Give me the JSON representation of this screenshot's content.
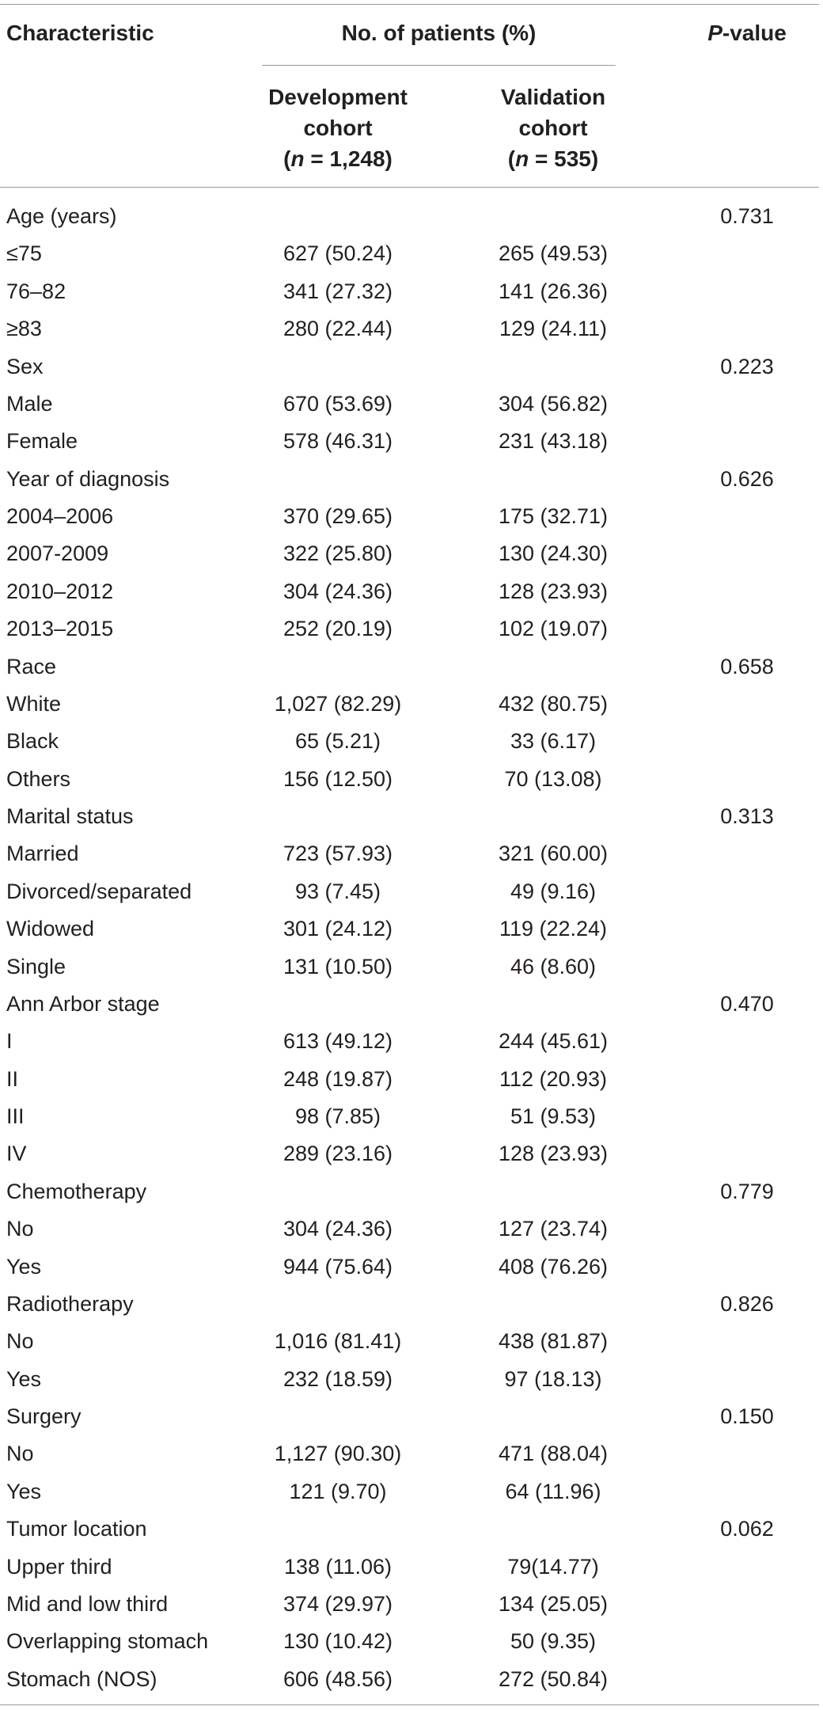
{
  "header": {
    "characteristic": "Characteristic",
    "group": "No. of patients (%)",
    "pvalue_italic": "P",
    "pvalue_rest": "-value",
    "dev": {
      "line1": "Development",
      "line2": "cohort",
      "n_open": "(",
      "n_var": "n",
      "n_rest": " = 1,248)"
    },
    "val": {
      "line1": "Validation",
      "line2": "cohort",
      "n_open": "(",
      "n_var": "n",
      "n_rest": " = 535)"
    }
  },
  "rows": [
    {
      "label": "Age (years)",
      "dev": "",
      "val": "",
      "p": "0.731"
    },
    {
      "label": "≤75",
      "dev": "627 (50.24)",
      "val": "265 (49.53)",
      "p": ""
    },
    {
      "label": "76–82",
      "dev": "341 (27.32)",
      "val": "141 (26.36)",
      "p": ""
    },
    {
      "label": "≥83",
      "dev": "280 (22.44)",
      "val": "129 (24.11)",
      "p": ""
    },
    {
      "label": "Sex",
      "dev": "",
      "val": "",
      "p": "0.223"
    },
    {
      "label": "Male",
      "dev": "670 (53.69)",
      "val": "304 (56.82)",
      "p": ""
    },
    {
      "label": "Female",
      "dev": "578 (46.31)",
      "val": "231 (43.18)",
      "p": ""
    },
    {
      "label": "Year of diagnosis",
      "dev": "",
      "val": "",
      "p": "0.626"
    },
    {
      "label": "2004–2006",
      "dev": "370 (29.65)",
      "val": "175 (32.71)",
      "p": ""
    },
    {
      "label": "2007-2009",
      "dev": "322 (25.80)",
      "val": "130 (24.30)",
      "p": ""
    },
    {
      "label": "2010–2012",
      "dev": "304 (24.36)",
      "val": "128 (23.93)",
      "p": ""
    },
    {
      "label": "2013–2015",
      "dev": "252 (20.19)",
      "val": "102 (19.07)",
      "p": ""
    },
    {
      "label": "Race",
      "dev": "",
      "val": "",
      "p": "0.658"
    },
    {
      "label": "White",
      "dev": "1,027 (82.29)",
      "val": "432 (80.75)",
      "p": ""
    },
    {
      "label": "Black",
      "dev": "65 (5.21)",
      "val": "33 (6.17)",
      "p": ""
    },
    {
      "label": "Others",
      "dev": "156 (12.50)",
      "val": "70 (13.08)",
      "p": ""
    },
    {
      "label": "Marital status",
      "dev": "",
      "val": "",
      "p": "0.313"
    },
    {
      "label": "Married",
      "dev": "723 (57.93)",
      "val": "321 (60.00)",
      "p": ""
    },
    {
      "label": "Divorced/separated",
      "dev": "93 (7.45)",
      "val": "49 (9.16)",
      "p": ""
    },
    {
      "label": "Widowed",
      "dev": "301 (24.12)",
      "val": "119 (22.24)",
      "p": ""
    },
    {
      "label": "Single",
      "dev": "131 (10.50)",
      "val": "46 (8.60)",
      "p": ""
    },
    {
      "label": "Ann Arbor stage",
      "dev": "",
      "val": "",
      "p": "0.470"
    },
    {
      "label": "I",
      "dev": "613 (49.12)",
      "val": "244 (45.61)",
      "p": ""
    },
    {
      "label": "II",
      "dev": "248 (19.87)",
      "val": "112 (20.93)",
      "p": ""
    },
    {
      "label": "III",
      "dev": "98 (7.85)",
      "val": "51 (9.53)",
      "p": ""
    },
    {
      "label": "IV",
      "dev": "289 (23.16)",
      "val": "128 (23.93)",
      "p": ""
    },
    {
      "label": "Chemotherapy",
      "dev": "",
      "val": "",
      "p": "0.779"
    },
    {
      "label": "No",
      "dev": "304 (24.36)",
      "val": "127 (23.74)",
      "p": ""
    },
    {
      "label": "Yes",
      "dev": "944 (75.64)",
      "val": "408 (76.26)",
      "p": ""
    },
    {
      "label": "Radiotherapy",
      "dev": "",
      "val": "",
      "p": "0.826"
    },
    {
      "label": "No",
      "dev": "1,016 (81.41)",
      "val": "438 (81.87)",
      "p": ""
    },
    {
      "label": "Yes",
      "dev": "232 (18.59)",
      "val": "97 (18.13)",
      "p": ""
    },
    {
      "label": "Surgery",
      "dev": "",
      "val": "",
      "p": "0.150"
    },
    {
      "label": "No",
      "dev": "1,127 (90.30)",
      "val": "471 (88.04)",
      "p": ""
    },
    {
      "label": "Yes",
      "dev": "121 (9.70)",
      "val": "64 (11.96)",
      "p": ""
    },
    {
      "label": "Tumor location",
      "dev": "",
      "val": "",
      "p": "0.062"
    },
    {
      "label": "Upper third",
      "dev": "138 (11.06)",
      "val": "79(14.77)",
      "p": ""
    },
    {
      "label": "Mid and low third",
      "dev": "374 (29.97)",
      "val": "134 (25.05)",
      "p": ""
    },
    {
      "label": "Overlapping stomach",
      "dev": "130 (10.42)",
      "val": "50 (9.35)",
      "p": ""
    },
    {
      "label": "Stomach (NOS)",
      "dev": "606 (48.56)",
      "val": "272 (50.84)",
      "p": ""
    }
  ]
}
